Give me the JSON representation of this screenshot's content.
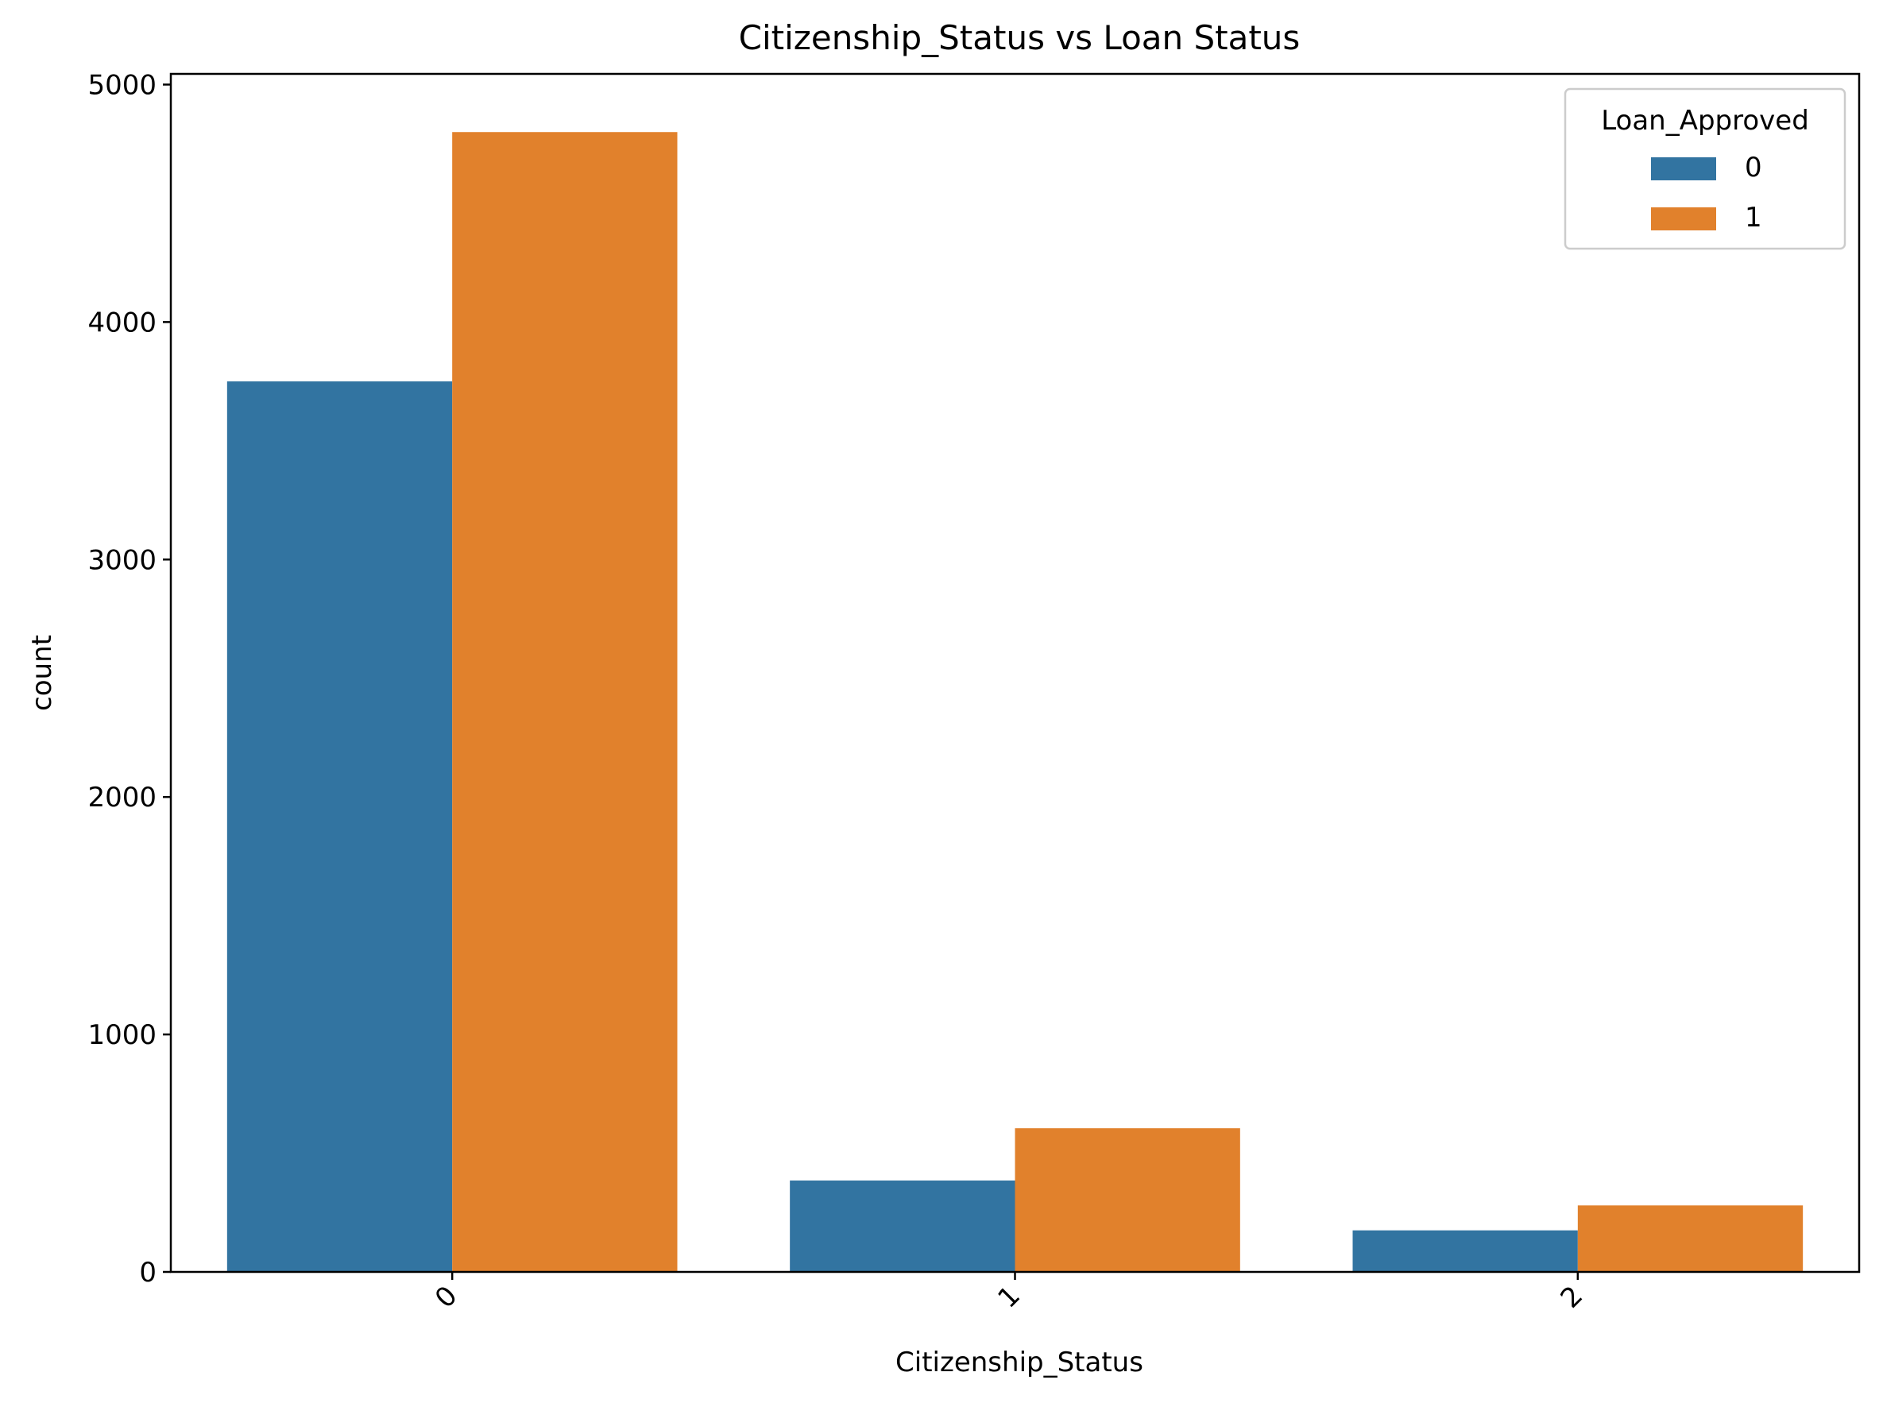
{
  "chart_data": {
    "type": "bar",
    "title": "Citizenship_Status vs Loan Status",
    "xlabel": "Citizenship_Status",
    "ylabel": "count",
    "categories": [
      "0",
      "1",
      "2"
    ],
    "series": [
      {
        "name": "0",
        "color": "#3274a1",
        "values": [
          3750,
          385,
          175
        ]
      },
      {
        "name": "1",
        "color": "#e1812c",
        "values": [
          4800,
          605,
          280
        ]
      }
    ],
    "ylim": [
      0,
      5045
    ],
    "yticks": [
      0,
      1000,
      2000,
      3000,
      4000,
      5000
    ],
    "legend": {
      "title": "Loan_Approved",
      "placement": "top-right"
    },
    "grid": false,
    "xtick_rotation": "45°"
  }
}
